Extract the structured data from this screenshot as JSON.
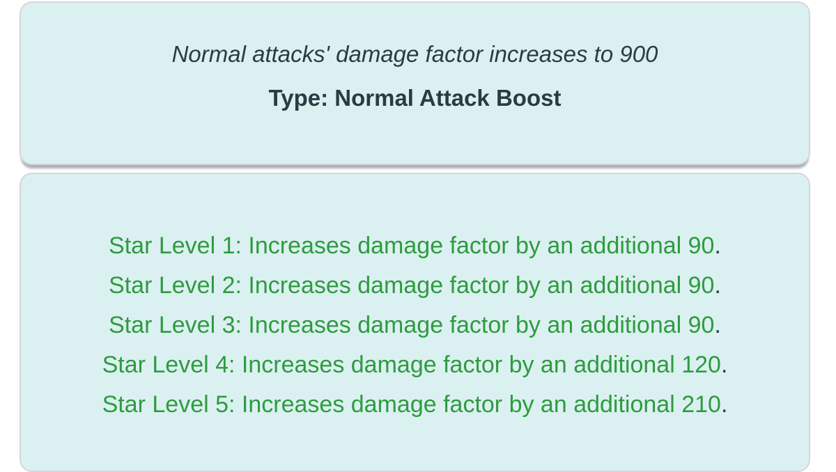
{
  "colors": {
    "page_background": "#ffffff",
    "card_background": "#dbf1f1",
    "card_border": "#d7d4de",
    "dark_text": "#2b3b44",
    "green_text": "#2e9b3f"
  },
  "summary_card": {
    "description": "Normal attacks' damage factor increases to 900",
    "type_line": "Type: Normal Attack Boost"
  },
  "star_levels_card": {
    "lines": [
      {
        "green_text": "Star Level 1: Increases damage factor by an additional 90",
        "suffix": "."
      },
      {
        "green_text": "Star Level 2: Increases damage factor by an additional 90",
        "suffix": "."
      },
      {
        "green_text": "Star Level 3: Increases damage factor by an additional 90",
        "suffix": "."
      },
      {
        "green_text": "Star Level 4: Increases damage factor by an additional 120",
        "suffix": "."
      },
      {
        "green_text": "Star Level 5: Increases damage factor by an additional 210",
        "suffix": "."
      }
    ]
  }
}
